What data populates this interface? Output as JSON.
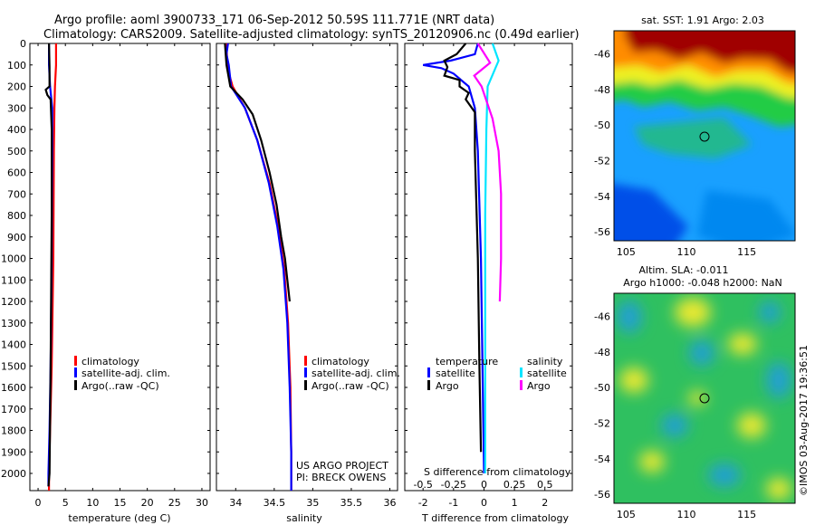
{
  "header": {
    "line1": "Argo profile: aoml 3900733_171 06-Sep-2012 50.59S 111.771E (NRT data)",
    "line2": "Climatology: CARS2009. Satellite-adjusted climatology: synTS_20120906.nc (0.49d earlier)"
  },
  "colors": {
    "climatology": "#ff0000",
    "satellite": "#0000ff",
    "argo": "#000000",
    "sal_satellite": "#00e5ff",
    "sal_argo": "#ff00ff"
  },
  "chart_data": [
    {
      "id": "temperature",
      "type": "line",
      "xlabel": "temperature (deg C)",
      "xlim": [
        -1.5,
        31.5
      ],
      "ylim": [
        2080,
        0
      ],
      "yticks": [
        0,
        100,
        200,
        300,
        400,
        500,
        600,
        700,
        800,
        900,
        1000,
        1100,
        1200,
        1300,
        1400,
        1500,
        1600,
        1700,
        1800,
        1900,
        2000
      ],
      "xticks": [
        0,
        5,
        10,
        15,
        20,
        25,
        30
      ],
      "legend": [
        "climatology",
        "satellite-adj. clim.",
        "Argo(..raw -QC)"
      ],
      "series": [
        {
          "name": "climatology",
          "color": "#ff0000",
          "points": [
            [
              3.3,
              0
            ],
            [
              3.3,
              100
            ],
            [
              3.1,
              200
            ],
            [
              3.0,
              300
            ],
            [
              2.9,
              500
            ],
            [
              2.8,
              1000
            ],
            [
              2.5,
              1500
            ],
            [
              2.2,
              1800
            ],
            [
              2.0,
              2000
            ],
            [
              2.0,
              2080
            ]
          ]
        },
        {
          "name": "satellite-adj. clim.",
          "color": "#0000ff",
          "points": [
            [
              2.0,
              0
            ],
            [
              2.0,
              100
            ],
            [
              2.2,
              200
            ],
            [
              2.6,
              300
            ],
            [
              2.6,
              500
            ],
            [
              2.5,
              1000
            ],
            [
              2.3,
              1500
            ],
            [
              2.1,
              1800
            ],
            [
              1.9,
              2000
            ],
            [
              1.9,
              2060
            ]
          ]
        },
        {
          "name": "Argo(..raw -QC)",
          "color": "#000000",
          "points": [
            [
              2.0,
              0
            ],
            [
              2.1,
              110
            ],
            [
              2.1,
              200
            ],
            [
              1.4,
              215
            ],
            [
              1.7,
              240
            ],
            [
              2.3,
              260
            ],
            [
              2.5,
              400
            ],
            [
              2.5,
              800
            ],
            [
              2.3,
              1500
            ],
            [
              2.1,
              2000
            ],
            [
              1.9,
              2060
            ]
          ]
        }
      ]
    },
    {
      "id": "salinity",
      "type": "line",
      "xlabel": "salinity",
      "xlim": [
        33.75,
        36.1
      ],
      "ylim": [
        2080,
        0
      ],
      "xticks": [
        34,
        34.5,
        35,
        35.5,
        36
      ],
      "legend": [
        "climatology",
        "satellite-adj. clim.",
        "Argo(..raw -QC)"
      ],
      "credit": [
        "US ARGO PROJECT",
        "PI: BRECK OWENS"
      ],
      "series": [
        {
          "name": "climatology",
          "color": "#ff0000",
          "points": [
            [
              33.88,
              0
            ],
            [
              33.89,
              100
            ],
            [
              33.92,
              150
            ],
            [
              33.96,
              200
            ],
            [
              34.12,
              300
            ],
            [
              34.28,
              450
            ],
            [
              34.44,
              650
            ],
            [
              34.55,
              850
            ],
            [
              34.63,
              1050
            ],
            [
              34.68,
              1300
            ],
            [
              34.71,
              1600
            ],
            [
              34.72,
              1900
            ],
            [
              34.72,
              2080
            ]
          ]
        },
        {
          "name": "satellite-adj. clim.",
          "color": "#0000ff",
          "points": [
            [
              33.9,
              0
            ],
            [
              33.88,
              50
            ],
            [
              33.91,
              100
            ],
            [
              33.94,
              200
            ],
            [
              34.12,
              300
            ],
            [
              34.28,
              450
            ],
            [
              34.43,
              650
            ],
            [
              34.54,
              850
            ],
            [
              34.62,
              1050
            ],
            [
              34.67,
              1300
            ],
            [
              34.7,
              1600
            ],
            [
              34.72,
              1900
            ],
            [
              34.72,
              2080
            ]
          ]
        },
        {
          "name": "Argo(..raw -QC)",
          "color": "#000000",
          "points": [
            [
              33.86,
              0
            ],
            [
              33.88,
              100
            ],
            [
              33.93,
              200
            ],
            [
              34.09,
              260
            ],
            [
              34.22,
              330
            ],
            [
              34.33,
              450
            ],
            [
              34.44,
              600
            ],
            [
              34.53,
              750
            ],
            [
              34.59,
              900
            ],
            [
              34.64,
              1000
            ],
            [
              34.67,
              1100
            ],
            [
              34.7,
              1200
            ]
          ]
        }
      ]
    },
    {
      "id": "difference",
      "type": "line",
      "xlabel": "T difference from climatology",
      "xlabel2": "S difference from climatology",
      "xlim": [
        -2.6,
        2.9
      ],
      "ylim": [
        2080,
        0
      ],
      "xticks": [
        -2,
        -1,
        0,
        1,
        2
      ],
      "xticks2": [
        -0.5,
        -0.25,
        0,
        0.25,
        0.5
      ],
      "legend_t_title": "temperature",
      "legend_s_title": "salinity",
      "legend": [
        "satellite",
        "Argo",
        "satellite",
        "Argo"
      ],
      "series": [
        {
          "name": "T satellite",
          "color": "#0000ff",
          "points": [
            [
              -0.2,
              0
            ],
            [
              -0.3,
              50
            ],
            [
              -1.1,
              80
            ],
            [
              -2.0,
              100
            ],
            [
              -1.4,
              115
            ],
            [
              -1.0,
              140
            ],
            [
              -0.5,
              200
            ],
            [
              -0.3,
              300
            ],
            [
              -0.2,
              500
            ],
            [
              -0.1,
              1000
            ],
            [
              -0.05,
              1500
            ],
            [
              0,
              2000
            ]
          ]
        },
        {
          "name": "T Argo",
          "color": "#000000",
          "points": [
            [
              -0.6,
              0
            ],
            [
              -0.9,
              50
            ],
            [
              -1.3,
              80
            ],
            [
              -1.2,
              110
            ],
            [
              -1.3,
              150
            ],
            [
              -0.8,
              170
            ],
            [
              -0.8,
              200
            ],
            [
              -0.5,
              230
            ],
            [
              -0.6,
              260
            ],
            [
              -0.3,
              320
            ],
            [
              -0.3,
              500
            ],
            [
              -0.2,
              1000
            ],
            [
              -0.15,
              1500
            ],
            [
              -0.1,
              1900
            ]
          ]
        },
        {
          "name": "S satellite",
          "color": "#00e5ff",
          "points": [
            [
              0.07,
              0
            ],
            [
              0.12,
              80
            ],
            [
              0.03,
              200
            ],
            [
              0.02,
              400
            ],
            [
              0.01,
              800
            ],
            [
              0.01,
              1500
            ],
            [
              0.01,
              2000
            ]
          ]
        },
        {
          "name": "S Argo",
          "color": "#ff00ff",
          "points": [
            [
              -0.05,
              0
            ],
            [
              0.05,
              90
            ],
            [
              -0.08,
              150
            ],
            [
              -0.02,
              200
            ],
            [
              0.07,
              350
            ],
            [
              0.12,
              500
            ],
            [
              0.14,
              700
            ],
            [
              0.14,
              1000
            ],
            [
              0.13,
              1200
            ]
          ]
        }
      ]
    },
    {
      "id": "sst-map",
      "type": "heatmap",
      "title": "sat. SST: 1.91 Argo: 2.03",
      "xlim": [
        104,
        119
      ],
      "ylim": [
        -56.5,
        -44.7
      ],
      "xticks": [
        105,
        110,
        115
      ],
      "yticks": [
        -46,
        -48,
        -50,
        -52,
        -54,
        -56
      ],
      "marker": [
        111.8,
        -50.6
      ]
    },
    {
      "id": "sla-map",
      "type": "heatmap",
      "title1": "Altim. SLA: -0.011",
      "title2": "Argo h1000: -0.048 h2000: NaN",
      "xlim": [
        104,
        119
      ],
      "ylim": [
        -56.5,
        -44.7
      ],
      "xticks": [
        105,
        110,
        115
      ],
      "yticks": [
        -46,
        -48,
        -50,
        -52,
        -54,
        -56
      ],
      "marker": [
        111.8,
        -50.6
      ]
    }
  ],
  "footer": {
    "stamp": "©IMOS 03-Aug-2017 19:36:51"
  }
}
